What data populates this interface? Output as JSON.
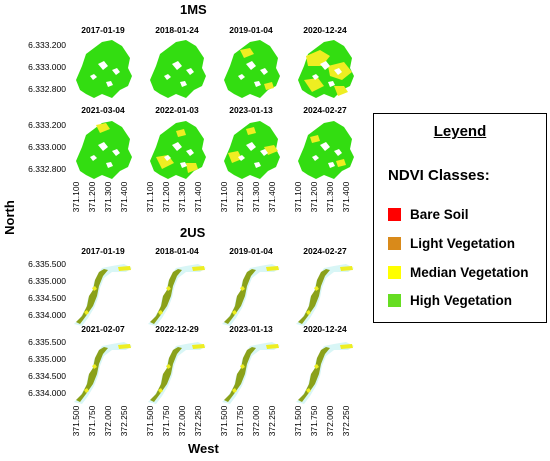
{
  "figure": {
    "section_1_title": "1MS",
    "section_2_title": "2US",
    "y_axis_title": "North",
    "x_axis_title": "West"
  },
  "section1": {
    "dates_row1": [
      "2017-01-19",
      "2018-01-24",
      "2019-01-04",
      "2020-12-24"
    ],
    "dates_row2": [
      "2021-03-04",
      "2022-01-03",
      "2023-01-13",
      "2024-02-27"
    ],
    "y_ticks": [
      "6.333.200",
      "6.333.000",
      "6.332.800"
    ],
    "x_ticks": [
      "371.100",
      "371.200",
      "371.300",
      "371.400"
    ]
  },
  "section2": {
    "dates_row1": [
      "2017-01-19",
      "2018-01-04",
      "2019-01-04",
      "2024-02-27"
    ],
    "dates_row2": [
      "2021-02-07",
      "2022-12-29",
      "2023-01-13",
      "2020-12-24"
    ],
    "y_ticks": [
      "6.335.500",
      "6.335.000",
      "6.334.500",
      "6.334.000"
    ],
    "x_ticks": [
      "371.500",
      "371.750",
      "372.000",
      "372.250"
    ]
  },
  "legend": {
    "title": "Leyend",
    "subtitle": "NDVI Classes:",
    "items": [
      {
        "label": "Bare Soil",
        "color": "#ff0000"
      },
      {
        "label": "Light Vegetation",
        "color": "#d98a1a"
      },
      {
        "label": "Median Vegetation",
        "color": "#ffff00"
      },
      {
        "label": "High Vegetation",
        "color": "#66dd22"
      }
    ]
  },
  "colors": {
    "high": "#33dd11",
    "median": "#eeee22",
    "olive": "#8aa11a",
    "water_halo": "#d8f6f6"
  }
}
